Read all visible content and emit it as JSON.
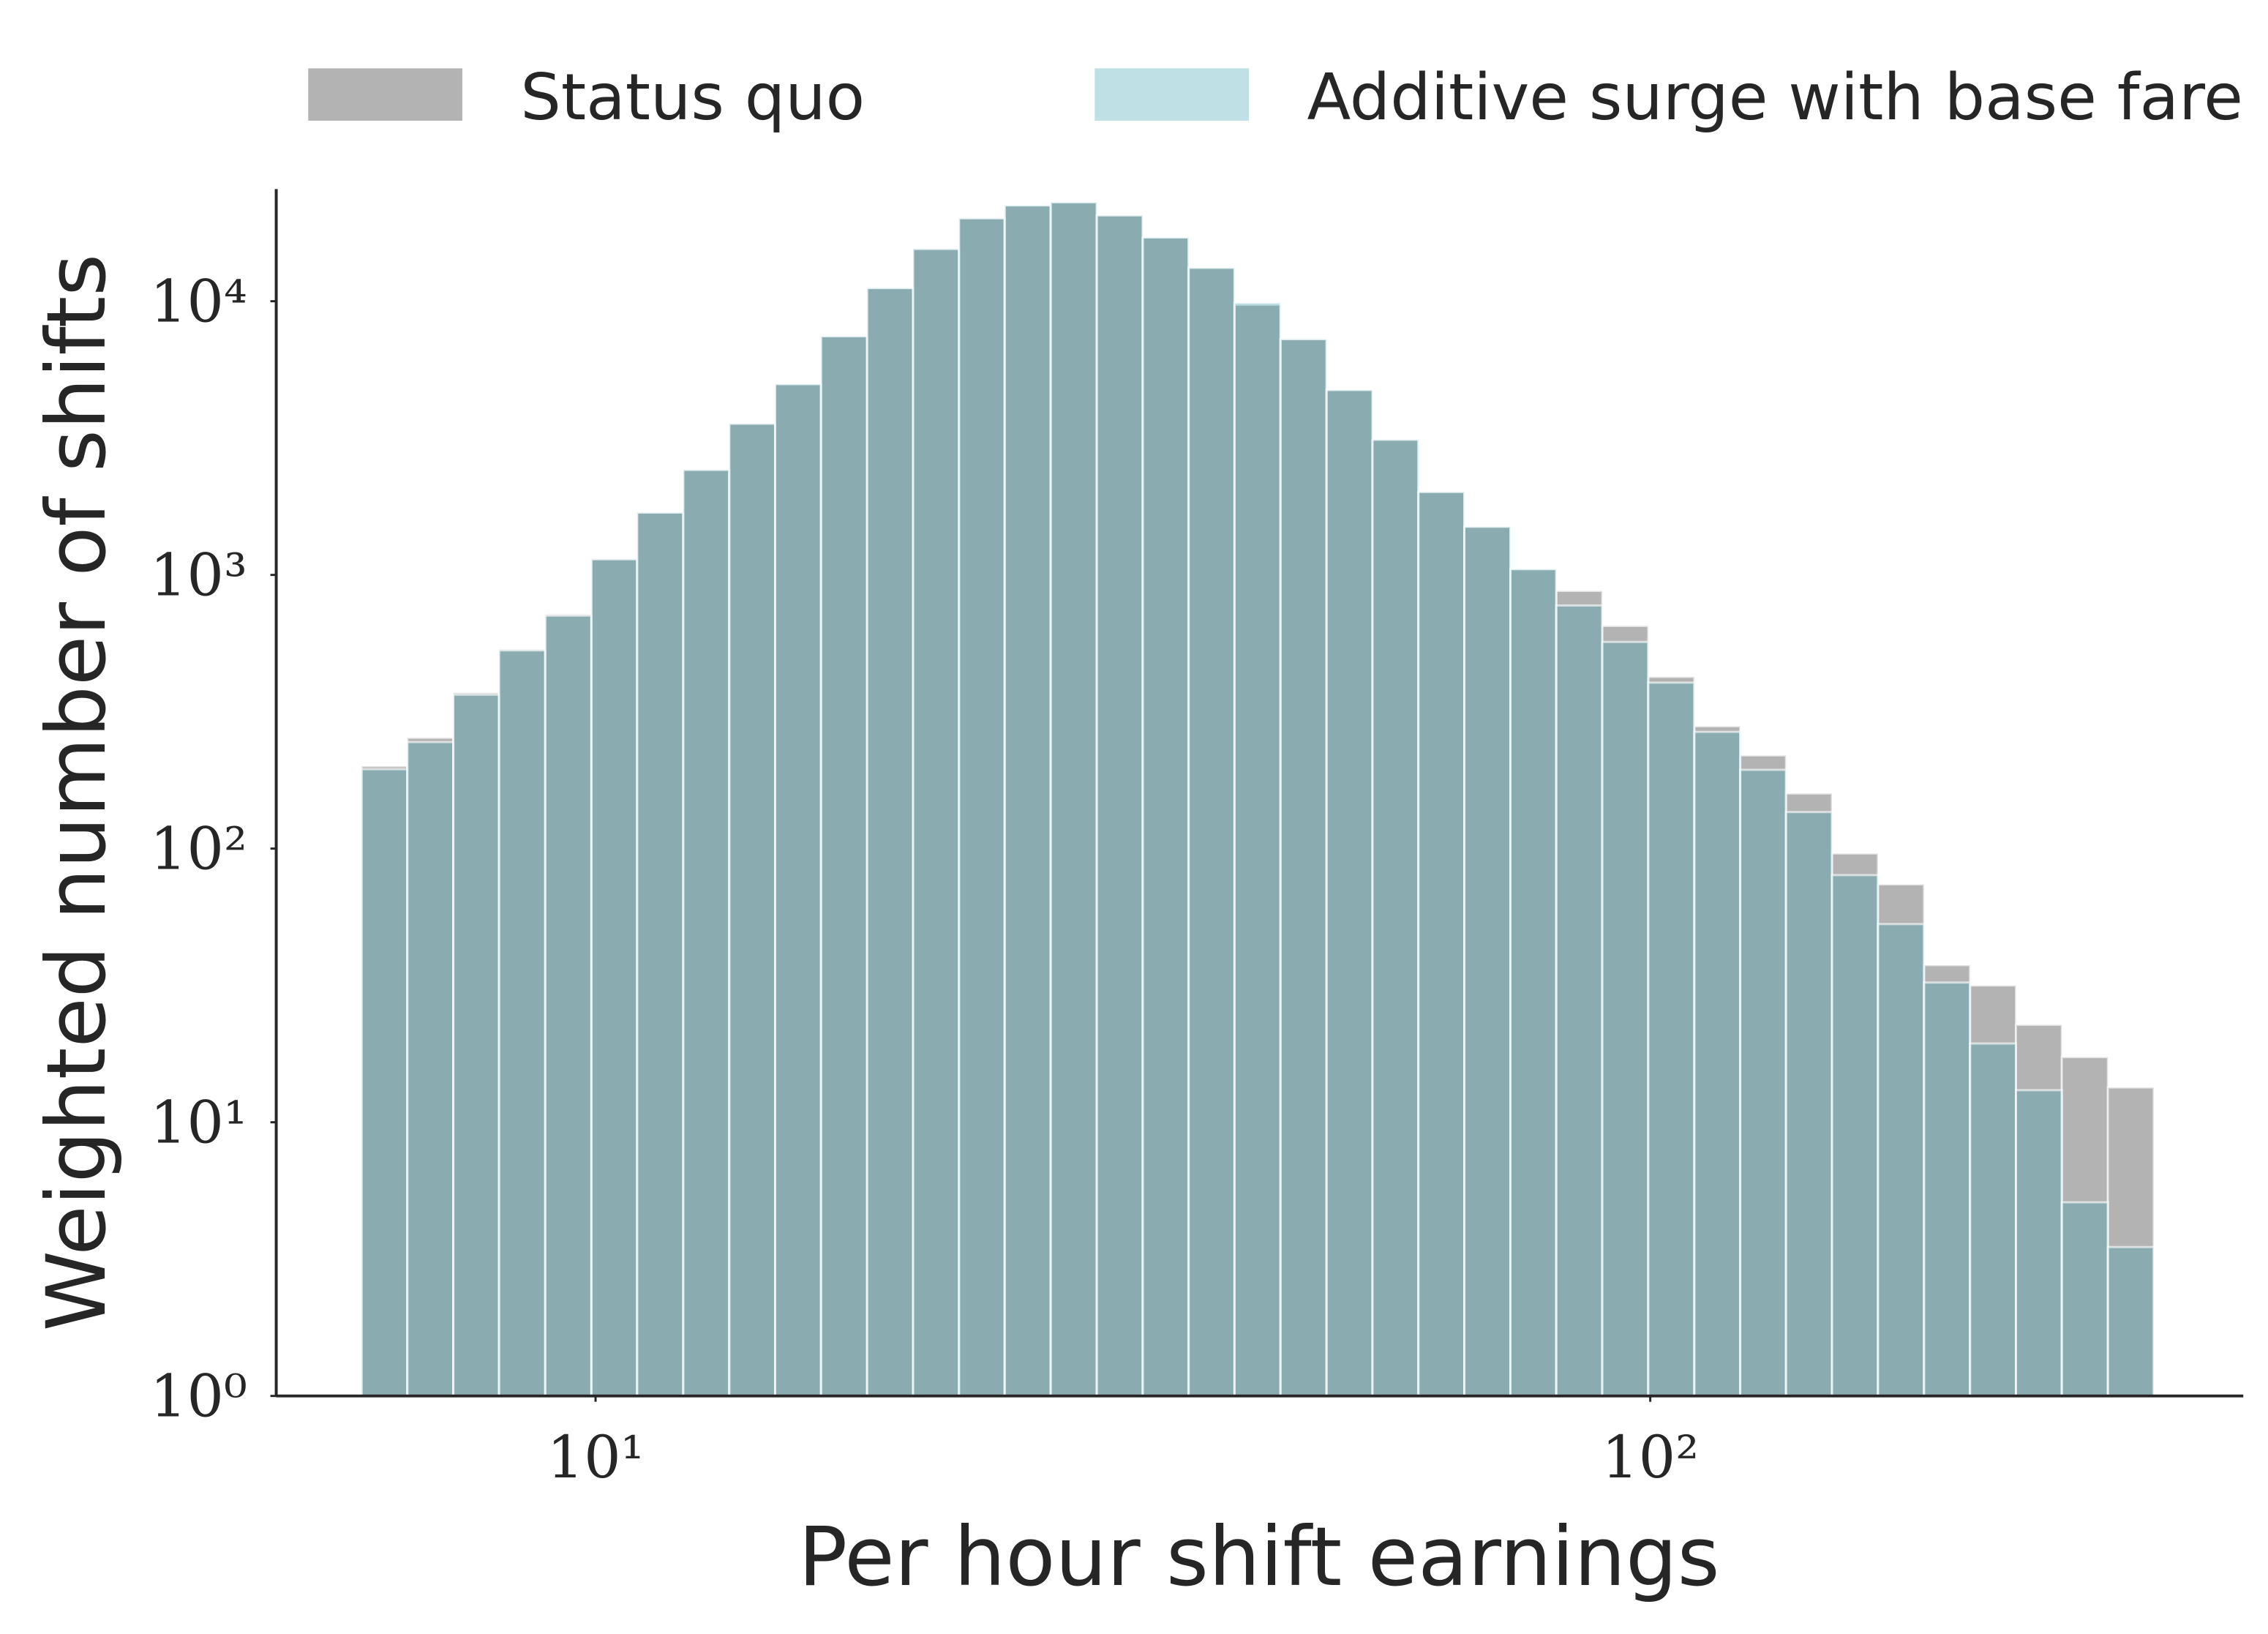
{
  "chart_data": {
    "type": "histogram",
    "xlabel": "Per hour shift earnings",
    "ylabel": "Weighted number of shifts",
    "bins": [
      6.0,
      6.63,
      7.33,
      8.1,
      8.96,
      9.91,
      10.95,
      12.11,
      13.39,
      14.8,
      16.36,
      18.09,
      20.0,
      22.11,
      24.43,
      27.01,
      29.87,
      33.02,
      36.5,
      40.35,
      44.61,
      49.33,
      54.53,
      60.28,
      66.64,
      73.69,
      81.45,
      90.05,
      99.56,
      110.1,
      121.7,
      134.5,
      148.7,
      164.4,
      181.8,
      201.0,
      222.2,
      245.6,
      271.6,
      300.2
    ],
    "series": [
      {
        "name": "Status quo",
        "color": "#808080",
        "values": [
          200,
          254,
          371,
          535,
          718,
          1145,
          1690,
          2420,
          3570,
          4980,
          7450,
          11170,
          15530,
          20100,
          22400,
          23000,
          20600,
          17100,
          13250,
          9700,
          7270,
          4740,
          3120,
          2010,
          1500,
          1050,
          874,
          651,
          424,
          280,
          219,
          159,
          96,
          74,
          37.5,
          31.6,
          22.7,
          17.3,
          13.4
        ]
      },
      {
        "name": "Additive surge with base fare",
        "color": "#2a9bac",
        "values": [
          195,
          245,
          365,
          530,
          710,
          1140,
          1690,
          2420,
          3570,
          4980,
          7450,
          11170,
          15530,
          20100,
          22400,
          23000,
          20600,
          17100,
          13250,
          9880,
          7270,
          4740,
          3120,
          2010,
          1500,
          1050,
          773,
          569,
          404,
          267,
          194,
          136,
          80,
          53,
          32.4,
          19.4,
          13.1,
          5.1,
          3.5
        ]
      }
    ],
    "xscale": "log",
    "yscale": "log",
    "xlim": [
      4.98,
      365
    ],
    "ylim": [
      1,
      25700
    ],
    "xticks": [
      {
        "value": 10,
        "label": "10¹"
      },
      {
        "value": 100,
        "label": "10²"
      }
    ],
    "yticks": [
      {
        "value": 1,
        "label": "10⁰"
      },
      {
        "value": 10,
        "label": "10¹"
      },
      {
        "value": 100,
        "label": "10²"
      },
      {
        "value": 1000,
        "label": "10³"
      },
      {
        "value": 10000,
        "label": "10⁴"
      }
    ],
    "grid": false,
    "legend": "top"
  }
}
